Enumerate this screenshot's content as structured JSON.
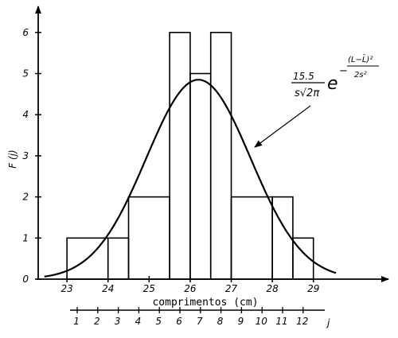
{
  "chart_data": {
    "type": "bar",
    "title": "",
    "ylabel": "F (j)",
    "xlabel": "comprimentos (cm)",
    "secondary_axis_label": "j",
    "ylim": [
      0,
      6
    ],
    "xlim": [
      22.3,
      29.8
    ],
    "y_ticks": [
      "0",
      "1",
      "2",
      "3",
      "4",
      "5",
      "6"
    ],
    "x_ticks": [
      "23",
      "24",
      "25",
      "26",
      "27",
      "28",
      "29"
    ],
    "j_ticks": [
      "1",
      "2",
      "3",
      "4",
      "5",
      "6",
      "7",
      "8",
      "9",
      "10",
      "11",
      "12"
    ],
    "histogram": [
      {
        "from": 23.0,
        "to": 24.0,
        "F": 1
      },
      {
        "from": 24.0,
        "to": 24.5,
        "F": 1
      },
      {
        "from": 24.5,
        "to": 25.5,
        "F": 2
      },
      {
        "from": 25.5,
        "to": 26.0,
        "F": 6
      },
      {
        "from": 26.0,
        "to": 26.5,
        "F": 5
      },
      {
        "from": 26.5,
        "to": 27.0,
        "F": 6
      },
      {
        "from": 27.0,
        "to": 28.0,
        "F": 2
      },
      {
        "from": 28.0,
        "to": 28.5,
        "F": 2
      },
      {
        "from": 28.5,
        "to": 29.0,
        "F": 1
      }
    ],
    "normal_curve": {
      "peak": 4.85,
      "mean": 26.2,
      "sd": 1.27
    },
    "annotation": {
      "coefficient_numerator": "15.5",
      "coefficient_denominator": "s√2π",
      "base": "e",
      "exponent_sign": "−",
      "exponent_numerator": "(L−L̄)²",
      "exponent_denominator": "2s²"
    }
  }
}
